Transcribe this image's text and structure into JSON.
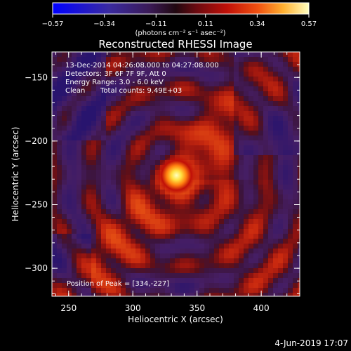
{
  "colorbar": {
    "min": -0.57,
    "max": 0.57,
    "tick_labels": [
      "-0.57",
      "-0.34",
      "-0.11",
      "0.11",
      "0.34",
      "0.57"
    ],
    "units_label": "(photons cm⁻² s⁻¹ asec⁻²)",
    "colormap": [
      "#0000ff",
      "#3a2aa0",
      "#4a2a7a",
      "#3a1030",
      "#6a0a10",
      "#c01008",
      "#f05010",
      "#ffb030",
      "#ffffaa"
    ]
  },
  "chart_data": {
    "type": "heatmap",
    "title": "Reconstructed RHESSI Image",
    "xlabel": "Heliocentric X (arcsec)",
    "ylabel": "Heliocentric Y (arcsec)",
    "xlim": [
      237,
      430
    ],
    "ylim": [
      -322,
      -130
    ],
    "x_ticks": [
      250,
      300,
      350,
      400
    ],
    "y_ticks": [
      -150,
      -200,
      -250,
      -300
    ],
    "x_tick_labels": [
      "250",
      "300",
      "350",
      "400"
    ],
    "y_tick_labels": [
      "−150",
      "−200",
      "−250",
      "−300"
    ],
    "peak": {
      "x": 334,
      "y": -227
    }
  },
  "annotations": {
    "time_range": "13-Dec-2014 04:26:08.000 to 04:27:08.000",
    "detectors": "Detectors: 3F 6F 7F 9F, Att 0",
    "energy": "Energy Range: 3.0 - 6.0 keV",
    "method": "Clean",
    "counts": "Total counts: 9.49E+03",
    "peak_position": "Position of Peak = [334,-227]"
  },
  "footer": {
    "timestamp": "4-Jun-2019 17:07"
  }
}
